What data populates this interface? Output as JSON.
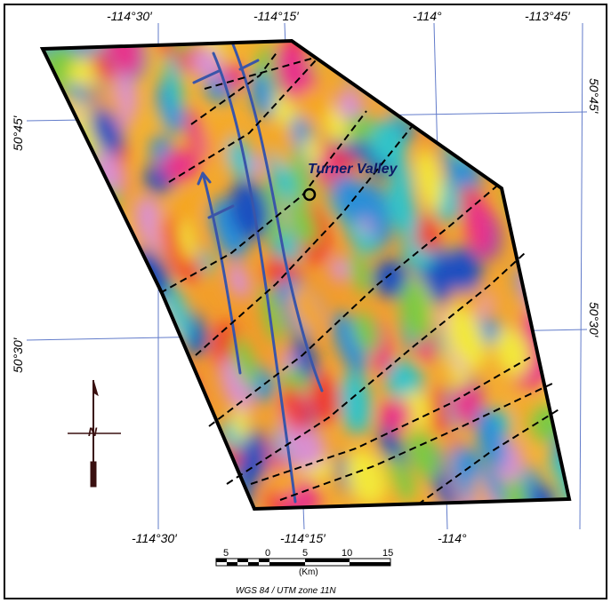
{
  "lon_top_labels": [
    "-114°30′",
    "-114°15′",
    "-114°",
    "-113°45′"
  ],
  "lon_bottom_labels": [
    "-114°30′",
    "-114°15′",
    "-114°"
  ],
  "lat_left_labels": [
    "50°45′",
    "50°30′"
  ],
  "lat_right_labels": [
    "50°45′",
    "50°30′"
  ],
  "place_label": "Turner Valley",
  "scale_bar": {
    "ticks": [
      "5",
      "0",
      "5",
      "10",
      "15"
    ],
    "unit": "(Km)"
  },
  "datum": "WGS 84 / UTM zone 11N",
  "north_arrow_letter": "N",
  "colors": {
    "frame": "#000000",
    "graticule": "#3b5bbd",
    "lineament": "#3a55a8",
    "fault_dash": "#000000",
    "anomaly_high": "#e8308a",
    "anomaly_low": "#1d4fbf"
  },
  "icons": [
    "north-arrow-icon",
    "location-circle-icon"
  ]
}
